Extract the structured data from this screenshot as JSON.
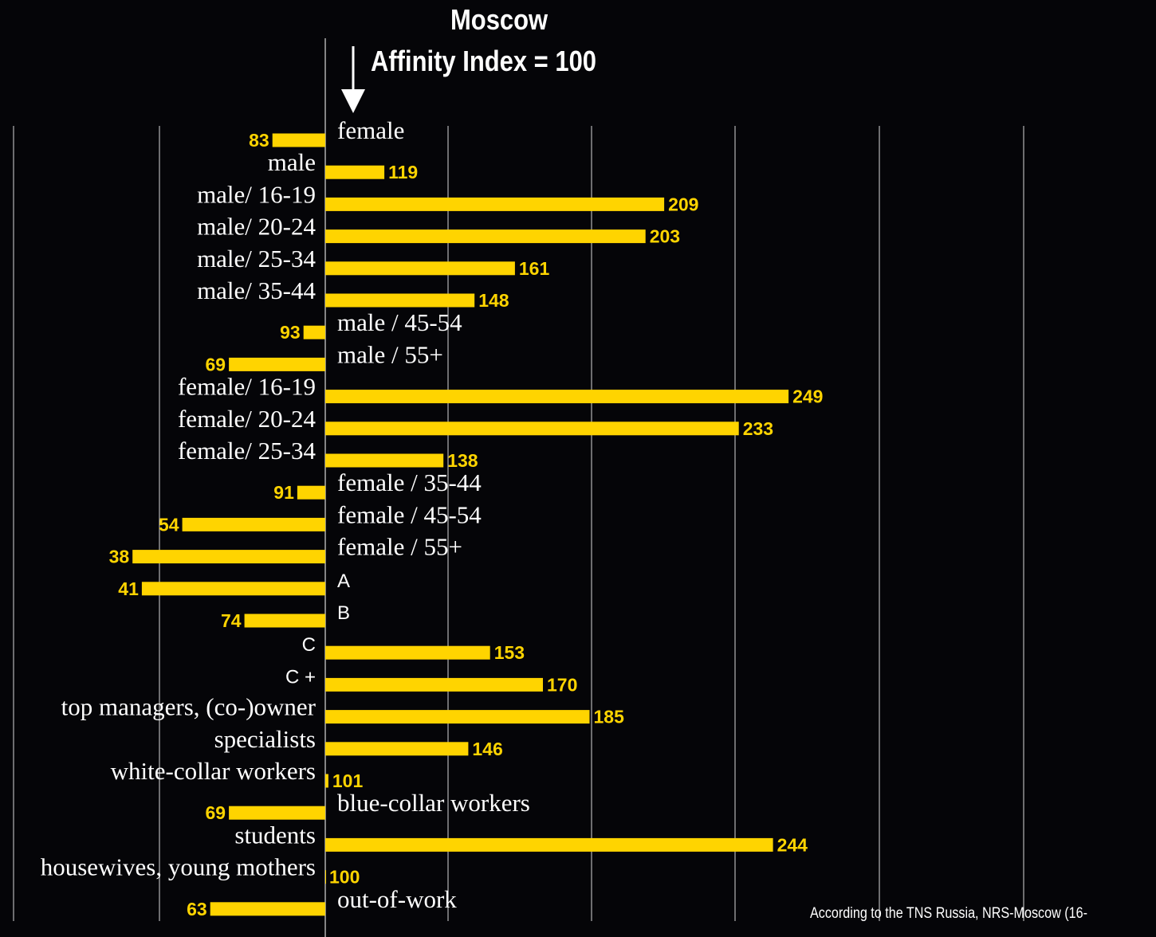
{
  "header": {
    "title_line1": "Moscow",
    "title_line2": "Affinity Index = 100"
  },
  "source_note": "According to the TNS Russia,  NRS-Moscow (16-",
  "colors": {
    "background": "#050508",
    "bar": "#ffd400",
    "value_label": "#ffd400",
    "text": "#ffffff",
    "grid": "#d8d8d8"
  },
  "chart_data": {
    "type": "bar",
    "orientation": "horizontal",
    "baseline": 100,
    "xlim": [
      0,
      260
    ],
    "grid": true,
    "categories": [
      "female",
      "male",
      "male/ 16-19",
      "male/ 20-24",
      "male/ 25-34",
      "male/ 35-44",
      "male / 45-54",
      "male / 55+",
      "female/ 16-19",
      "female/ 20-24",
      "female/ 25-34",
      "female / 35-44",
      "female / 45-54",
      "female / 55+",
      "A",
      "B",
      "C",
      "C +",
      "top managers, (co-)owner",
      "specialists",
      "white-collar workers",
      "blue-collar workers",
      "students",
      "housewives, young mothers",
      "out-of-work"
    ],
    "values": [
      83,
      119,
      209,
      203,
      161,
      148,
      93,
      69,
      249,
      233,
      138,
      91,
      54,
      38,
      41,
      74,
      153,
      170,
      185,
      146,
      101,
      69,
      244,
      100,
      63
    ],
    "value_labels": [
      "83",
      "119",
      "209",
      "203",
      "161",
      "148",
      "93",
      "69",
      "249",
      "233",
      "138",
      "91",
      "54",
      "38",
      "41",
      "74",
      "153",
      "170",
      "185",
      "146",
      "101",
      "69",
      "244",
      "100",
      "63"
    ]
  }
}
